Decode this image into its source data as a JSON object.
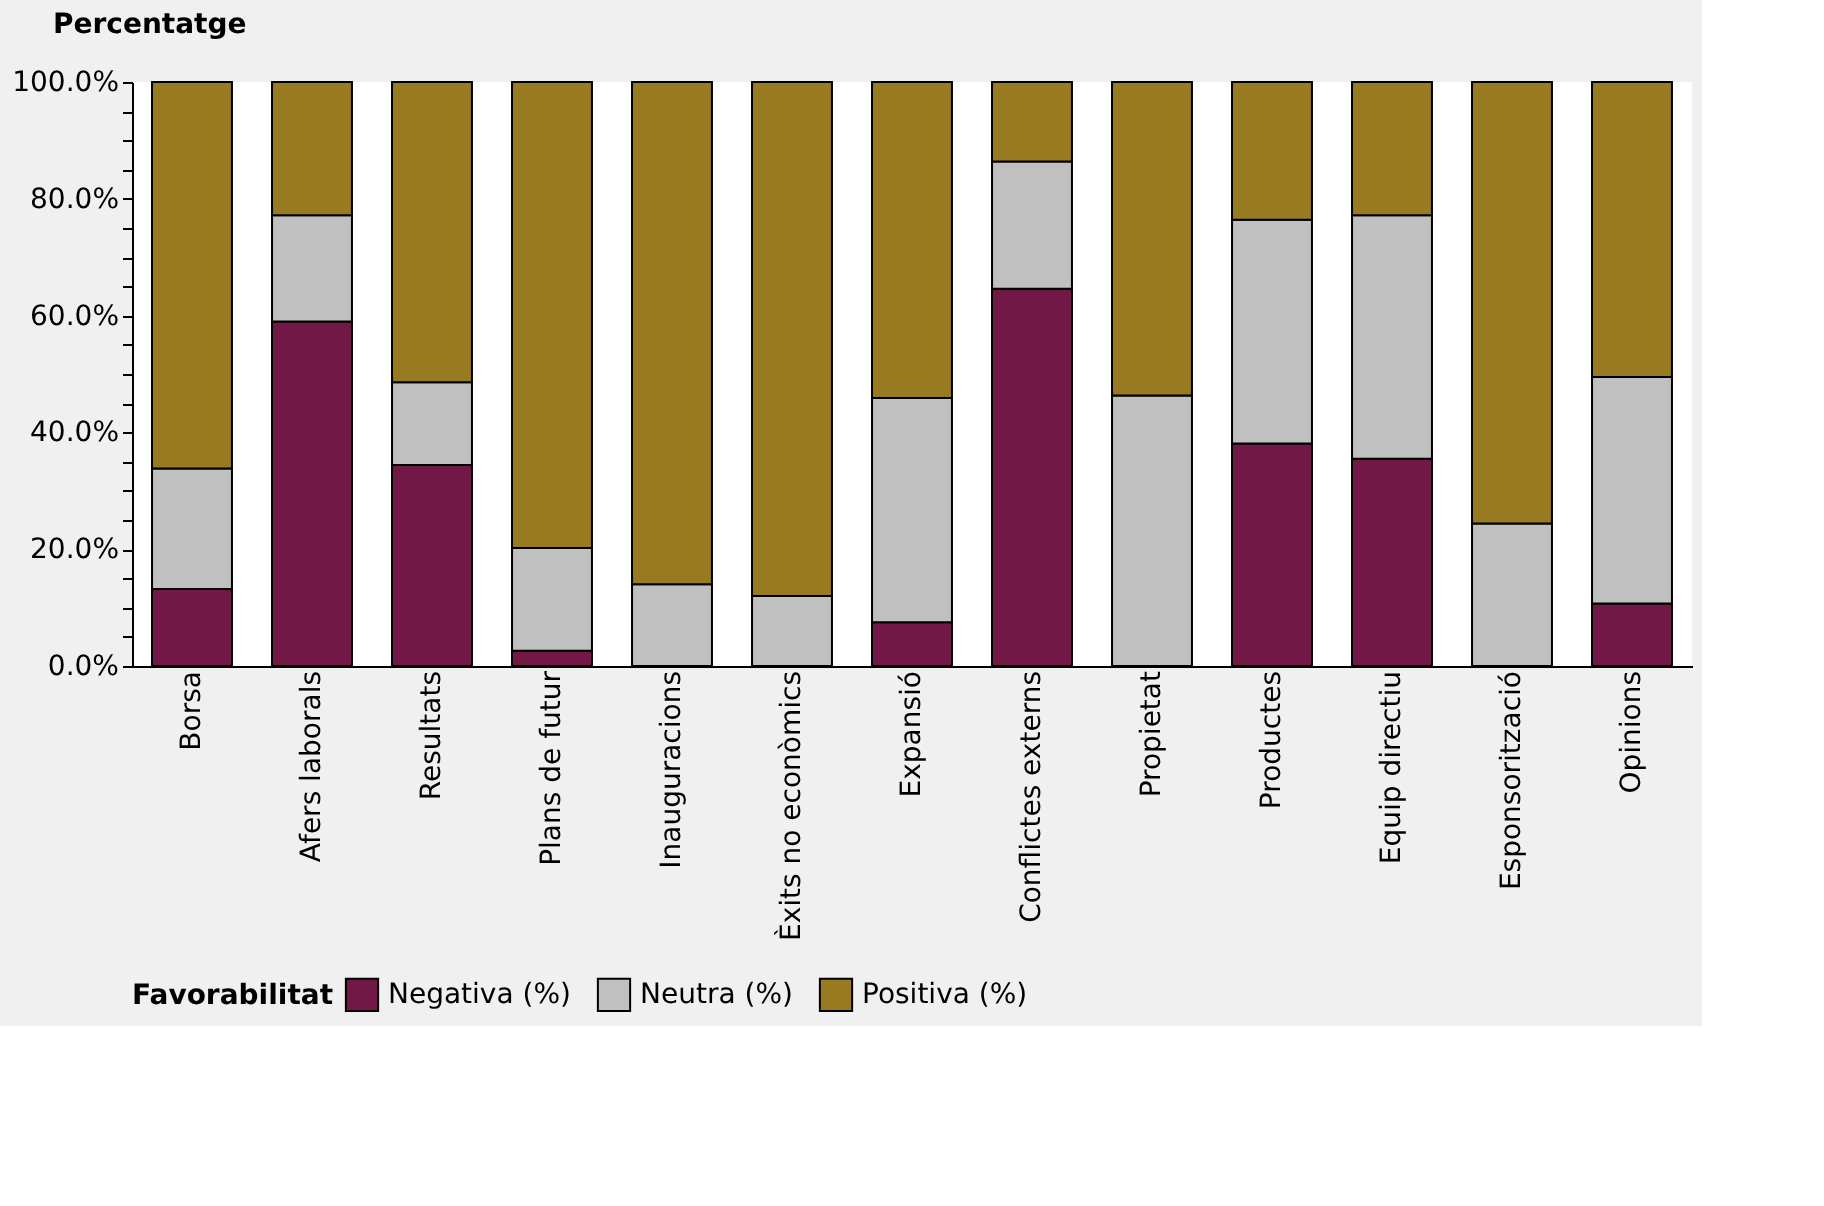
{
  "chart_data": {
    "type": "bar",
    "stacked": true,
    "ylabel": "Percentatge",
    "legend_title": "Favorabilitat",
    "legend": "bottom",
    "grid": false,
    "categories": [
      "Borsa",
      "Afers laborals",
      "Resultats",
      "Plans de futur",
      "Inauguracions",
      "Èxits no econòmics",
      "Expansió",
      "Conflictes externs",
      "Propietat",
      "Productes",
      "Equip directiu",
      "Esponsorització",
      "Opinions"
    ],
    "series": [
      {
        "name": "Negativa (%)",
        "color": "#721846",
        "values": [
          13.2,
          59.0,
          34.4,
          2.6,
          0,
          0,
          7.5,
          64.6,
          0,
          38.1,
          35.5,
          0,
          10.7
        ]
      },
      {
        "name": "Neutra (%)",
        "color": "#c0c0c0",
        "values": [
          20.6,
          18.2,
          14.2,
          17.6,
          14.0,
          12.0,
          38.4,
          21.8,
          46.3,
          38.3,
          41.7,
          24.4,
          38.8
        ]
      },
      {
        "name": "Positiva (%)",
        "color": "#987a20",
        "values": [
          66.2,
          22.8,
          51.4,
          79.8,
          86.0,
          88.0,
          54.1,
          13.6,
          53.7,
          23.6,
          22.8,
          75.6,
          50.5
        ]
      }
    ],
    "ylim": [
      0,
      100
    ],
    "yticks": [
      {
        "value": 0,
        "label": "0.0%"
      },
      {
        "value": 5,
        "label": null
      },
      {
        "value": 10,
        "label": null
      },
      {
        "value": 15,
        "label": null
      },
      {
        "value": 20,
        "label": "20.0%"
      },
      {
        "value": 25,
        "label": null
      },
      {
        "value": 30,
        "label": null
      },
      {
        "value": 35,
        "label": null
      },
      {
        "value": 40,
        "label": "40.0%"
      },
      {
        "value": 45,
        "label": null
      },
      {
        "value": 50,
        "label": null
      },
      {
        "value": 55,
        "label": null
      },
      {
        "value": 60,
        "label": "60.0%"
      },
      {
        "value": 65,
        "label": null
      },
      {
        "value": 70,
        "label": null
      },
      {
        "value": 75,
        "label": null
      },
      {
        "value": 80,
        "label": "80.0%"
      },
      {
        "value": 85,
        "label": null
      },
      {
        "value": 90,
        "label": null
      },
      {
        "value": 95,
        "label": null
      },
      {
        "value": 100,
        "label": "100.0%"
      }
    ]
  }
}
